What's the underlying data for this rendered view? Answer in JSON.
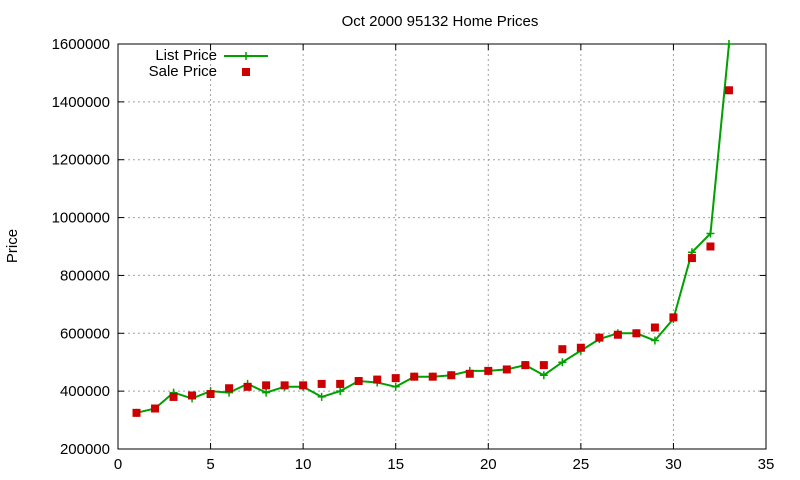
{
  "chart_data": {
    "type": "line",
    "title": "Oct 2000 95132 Home Prices",
    "xlabel": "",
    "ylabel": "Price",
    "xlim": [
      0,
      35
    ],
    "ylim": [
      200000,
      1600000
    ],
    "xticks": [
      0,
      5,
      10,
      15,
      20,
      25,
      30,
      35
    ],
    "yticks": [
      200000,
      400000,
      600000,
      800000,
      1000000,
      1200000,
      1400000,
      1600000
    ],
    "grid": true,
    "legend_position": "top-left",
    "x": [
      1,
      2,
      3,
      4,
      5,
      6,
      7,
      8,
      9,
      10,
      11,
      12,
      13,
      14,
      15,
      16,
      17,
      18,
      19,
      20,
      21,
      22,
      23,
      24,
      25,
      26,
      27,
      28,
      29,
      30,
      31,
      32,
      33
    ],
    "series": [
      {
        "name": "List Price",
        "style": "line-plus",
        "color": "#00a000",
        "values": [
          325000,
          340000,
          395000,
          375000,
          400000,
          395000,
          425000,
          395000,
          415000,
          415000,
          380000,
          400000,
          435000,
          430000,
          415000,
          450000,
          450000,
          455000,
          470000,
          470000,
          475000,
          490000,
          455000,
          500000,
          540000,
          580000,
          600000,
          600000,
          575000,
          650000,
          880000,
          945000,
          1600000
        ]
      },
      {
        "name": "Sale Price",
        "style": "points",
        "color": "#cc0000",
        "values": [
          325000,
          340000,
          380000,
          385000,
          390000,
          410000,
          415000,
          420000,
          420000,
          420000,
          425000,
          425000,
          435000,
          440000,
          445000,
          450000,
          450000,
          455000,
          460000,
          470000,
          475000,
          490000,
          490000,
          545000,
          550000,
          585000,
          595000,
          600000,
          620000,
          655000,
          860000,
          900000,
          1440000
        ]
      }
    ]
  }
}
